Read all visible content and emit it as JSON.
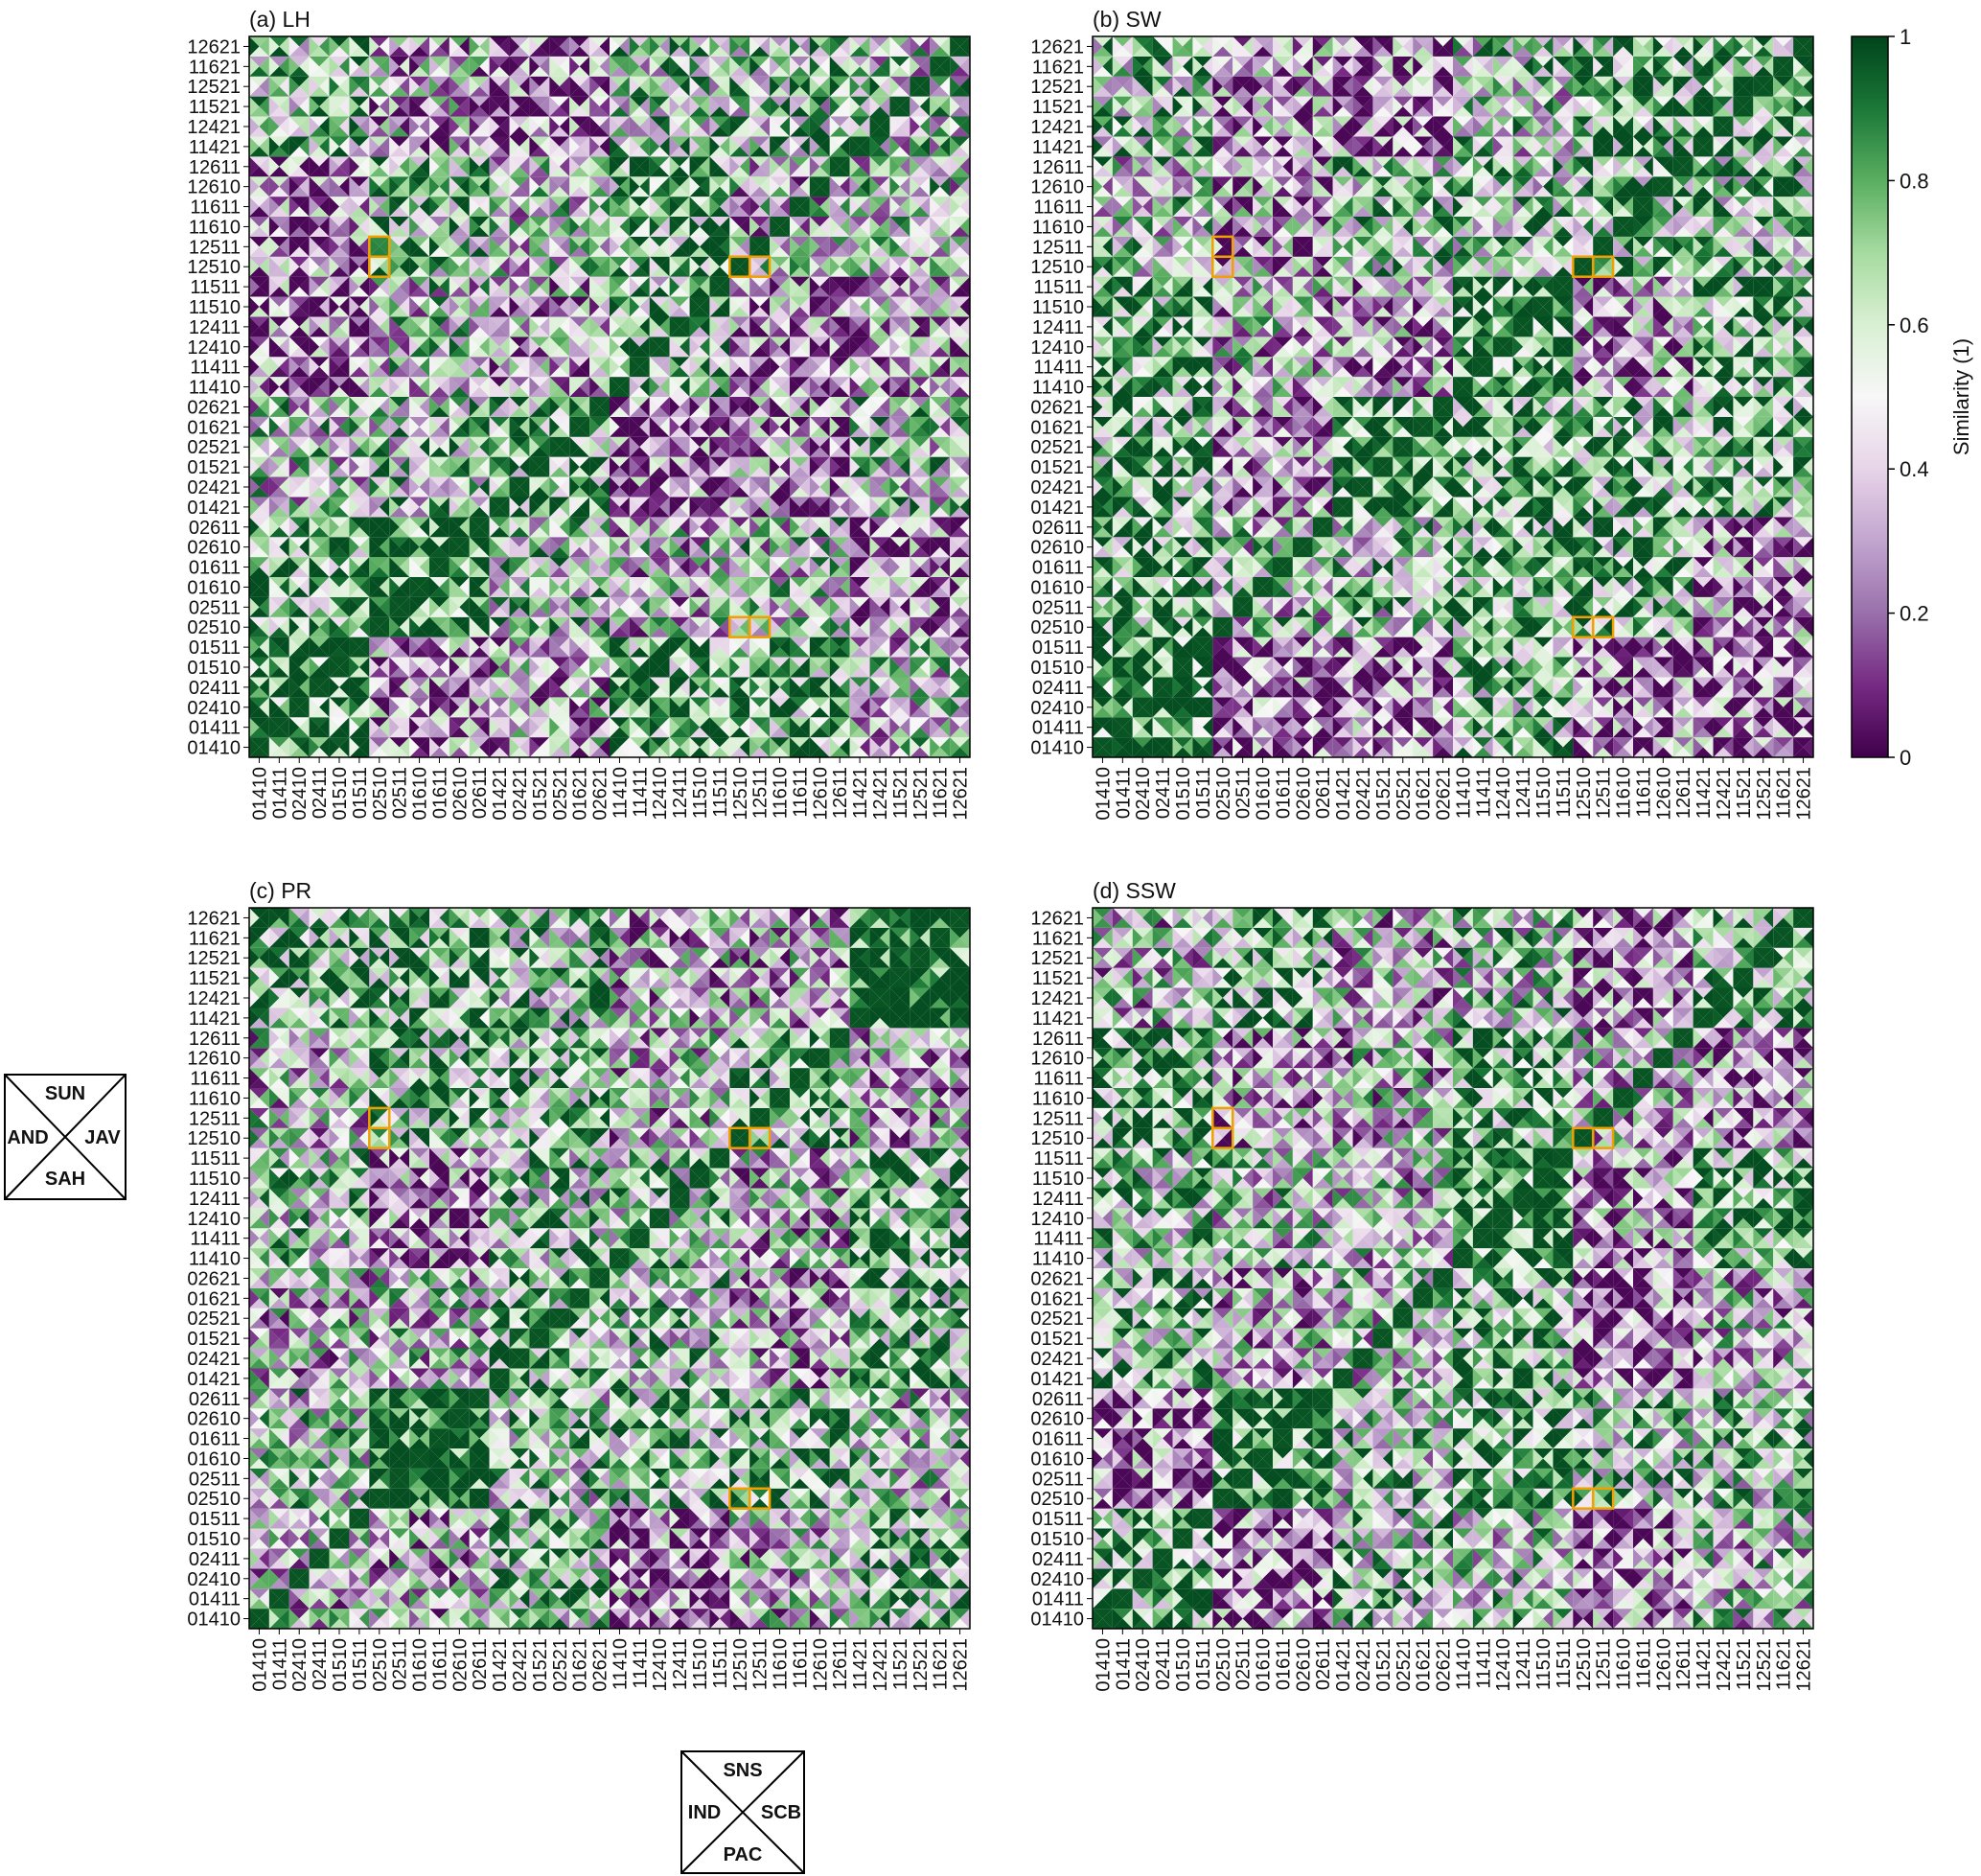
{
  "chart_data": {
    "type": "heatmap",
    "value_range": [
      0,
      1
    ],
    "colormap": {
      "low": "#40004b",
      "mid": "#f7f7f7",
      "high": "#00441b"
    },
    "cell_triangles": [
      "top",
      "right",
      "bottom",
      "left"
    ],
    "labels": [
      "01410",
      "01411",
      "02410",
      "02411",
      "01510",
      "01511",
      "02510",
      "02511",
      "01610",
      "01611",
      "02610",
      "02611",
      "01421",
      "02421",
      "01521",
      "02521",
      "01621",
      "02621",
      "11410",
      "11411",
      "12410",
      "12411",
      "11510",
      "11511",
      "12510",
      "12511",
      "11610",
      "11611",
      "12610",
      "12611",
      "11421",
      "12421",
      "11521",
      "12521",
      "11621",
      "12621"
    ],
    "panels": [
      {
        "title": "(a) LH",
        "highlight_cols": [
          6,
          24,
          25
        ],
        "highlight_rows": [
          24,
          25,
          6
        ]
      },
      {
        "title": "(b) SW",
        "highlight_cols": [
          6,
          24,
          25
        ],
        "highlight_rows": [
          24,
          25,
          6
        ]
      },
      {
        "title": "(c) PR",
        "highlight_cols": [
          6,
          24,
          25
        ],
        "highlight_rows": [
          24,
          25,
          6
        ]
      },
      {
        "title": "(d) SSW",
        "highlight_cols": [
          6,
          24,
          25
        ],
        "highlight_rows": [
          24,
          25,
          6
        ]
      }
    ],
    "colorbar": {
      "label": "Similarity (1)",
      "ticks": [
        "0",
        "0.2",
        "0.4",
        "0.6",
        "0.8",
        "1"
      ]
    },
    "keys": {
      "rows": {
        "top": "SUN",
        "left": "AND",
        "right": "JAV",
        "bottom": "SAH"
      },
      "columns": {
        "top": "SNS",
        "left": "IND",
        "right": "SCB",
        "bottom": "PAC"
      }
    },
    "highlight_color": "#f0a000"
  }
}
